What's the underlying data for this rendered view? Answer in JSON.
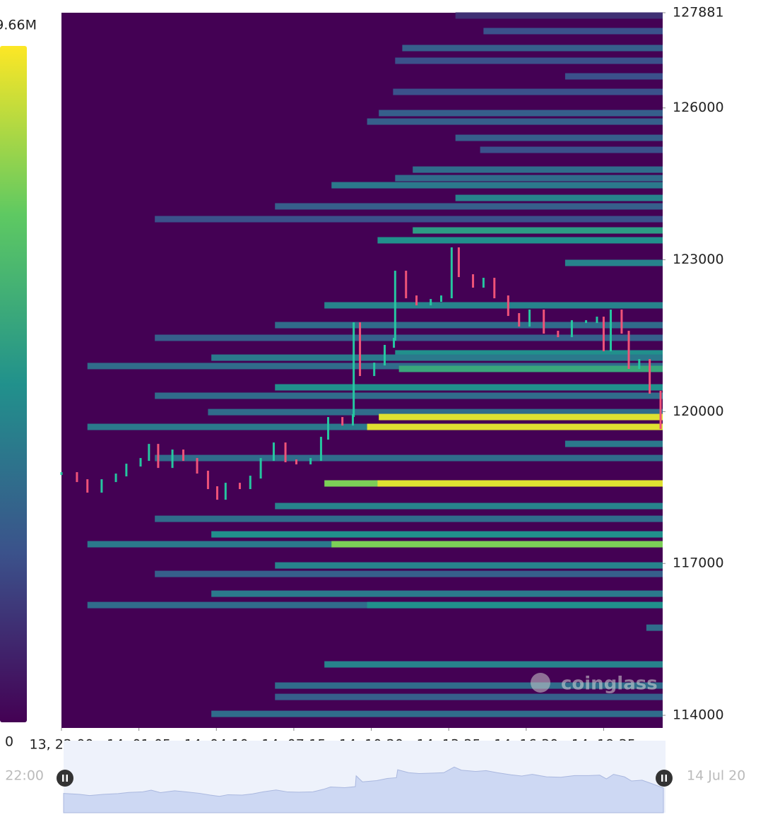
{
  "chart_data": {
    "type": "heatmap",
    "ylim": [
      113750,
      127881
    ],
    "yticks": [
      114000,
      117000,
      120000,
      123000,
      126000,
      127881
    ],
    "xlim": [
      0,
      1436
    ],
    "xticks": [
      {
        "value": 0,
        "label": "13, 22:00"
      },
      {
        "value": 185,
        "label": "14, 01:05"
      },
      {
        "value": 370,
        "label": "14, 04:10"
      },
      {
        "value": 555,
        "label": "14, 07:15"
      },
      {
        "value": 740,
        "label": "14, 10:20"
      },
      {
        "value": 925,
        "label": "14, 13:25"
      },
      {
        "value": 1110,
        "label": "14, 16:30"
      },
      {
        "value": 1295,
        "label": "14, 19:35"
      }
    ],
    "colorbar": {
      "min": 0,
      "max": {
        "value": 9.66,
        "label": "9.66M"
      }
    },
    "bands": {
      "prices": [
        127825,
        127518,
        127183,
        126932,
        126624,
        126317,
        125898,
        125730,
        125409,
        125172,
        124781,
        124613,
        124473,
        124222,
        124055,
        123803,
        123580,
        123385,
        122938,
        122100,
        121709,
        121458,
        121151,
        121066,
        120900,
        120844,
        120480,
        120313,
        119990,
        119893,
        119698,
        119698,
        119363,
        119083,
        118581,
        118581,
        118134,
        117882,
        117575,
        117380,
        117380,
        116961,
        116793,
        116402,
        116178,
        116178,
        115731,
        115006,
        114587,
        114363,
        114028
      ],
      "starts": [
        941,
        1008,
        814,
        797,
        1203,
        792,
        758,
        730,
        941,
        1000,
        839,
        797,
        645,
        941,
        510,
        223,
        839,
        755,
        1203,
        628,
        510,
        223,
        797,
        358,
        62,
        806,
        510,
        223,
        350,
        758,
        62,
        730,
        1203,
        223,
        628,
        755,
        510,
        223,
        358,
        62,
        645,
        510,
        223,
        358,
        62,
        730,
        1397,
        628,
        510,
        510,
        358
      ],
      "values": [
        1.4,
        2.4,
        2.9,
        2.4,
        2.4,
        2.4,
        2.9,
        2.9,
        2.9,
        2.4,
        3.4,
        3.4,
        3.9,
        4.3,
        2.9,
        2.4,
        5.3,
        4.8,
        4.3,
        4.3,
        3.4,
        2.9,
        4.8,
        3.9,
        3.4,
        5.8,
        4.8,
        3.4,
        3.4,
        9.2,
        3.9,
        9.2,
        3.9,
        3.4,
        7.7,
        9.2,
        4.3,
        3.4,
        4.8,
        3.9,
        7.7,
        4.3,
        2.9,
        3.9,
        3.4,
        4.8,
        3.4,
        4.3,
        3.4,
        2.9,
        3.4
      ]
    },
    "price": {
      "x": [
        0,
        37,
        62,
        96,
        130,
        155,
        189,
        209,
        231,
        265,
        291,
        324,
        350,
        372,
        392,
        426,
        451,
        476,
        507,
        535,
        561,
        595,
        620,
        637,
        671,
        696,
        698,
        713,
        747,
        772,
        794,
        797,
        823,
        848,
        882,
        907,
        932,
        949,
        983,
        1008,
        1034,
        1067,
        1093,
        1118,
        1152,
        1186,
        1219,
        1253,
        1279,
        1295,
        1312,
        1338,
        1355,
        1380,
        1405,
        1431
      ],
      "values": [
        118776,
        118636,
        118427,
        118636,
        118748,
        118943,
        119055,
        119334,
        118915,
        119223,
        119055,
        118804,
        118497,
        118287,
        118566,
        118497,
        118706,
        119055,
        119362,
        119027,
        118985,
        119055,
        119474,
        119865,
        119753,
        119921,
        121736,
        120731,
        120940,
        121290,
        121429,
        122756,
        122267,
        122127,
        122197,
        122267,
        123217,
        122686,
        122477,
        122616,
        122267,
        121918,
        121708,
        121988,
        121569,
        121499,
        121778,
        121778,
        121848,
        121220,
        121988,
        121569,
        120871,
        121010,
        120382,
        119684
      ]
    },
    "watermark": "coinglass",
    "range_labels": [
      ", 22:00",
      "14 Jul 20"
    ]
  }
}
